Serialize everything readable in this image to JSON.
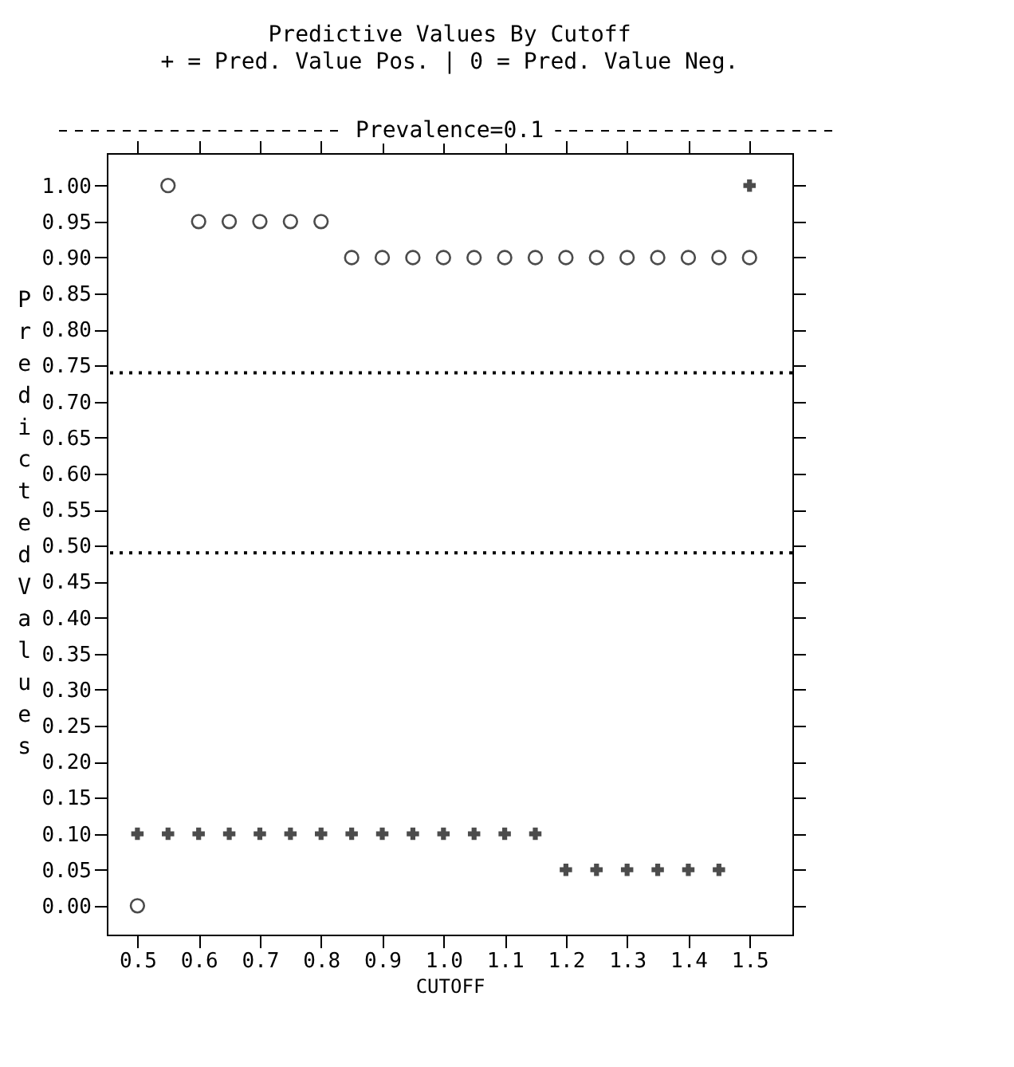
{
  "chart_data": {
    "type": "scatter",
    "title": "Predictive Values By Cutoff",
    "subtitle": "+ = Pred. Value Pos. | 0 = Pred. Value Neg.",
    "annotations": [
      "Prevalence=0.1"
    ],
    "xlabel": "CUTOFF",
    "ylabel": "Predicted Values",
    "xlim": [
      0.45,
      1.57
    ],
    "xticks": [
      {
        "value": 0.5,
        "label": "0.5"
      },
      {
        "value": 0.6,
        "label": "0.6"
      },
      {
        "value": 0.7,
        "label": "0.7"
      },
      {
        "value": 0.8,
        "label": "0.8"
      },
      {
        "value": 0.9,
        "label": "0.9"
      },
      {
        "value": 1.0,
        "label": "1.0"
      },
      {
        "value": 1.1,
        "label": "1.1"
      },
      {
        "value": 1.2,
        "label": "1.2"
      },
      {
        "value": 1.3,
        "label": "1.3"
      },
      {
        "value": 1.4,
        "label": "1.4"
      },
      {
        "value": 1.5,
        "label": "1.5"
      }
    ],
    "ylim": [
      -0.04,
      1.045
    ],
    "yticks": [
      {
        "value": 0.0,
        "label": "0.00"
      },
      {
        "value": 0.05,
        "label": "0.05"
      },
      {
        "value": 0.1,
        "label": "0.10"
      },
      {
        "value": 0.15,
        "label": "0.15"
      },
      {
        "value": 0.2,
        "label": "0.20"
      },
      {
        "value": 0.25,
        "label": "0.25"
      },
      {
        "value": 0.3,
        "label": "0.30"
      },
      {
        "value": 0.35,
        "label": "0.35"
      },
      {
        "value": 0.4,
        "label": "0.40"
      },
      {
        "value": 0.45,
        "label": "0.45"
      },
      {
        "value": 0.5,
        "label": "0.50"
      },
      {
        "value": 0.55,
        "label": "0.55"
      },
      {
        "value": 0.6,
        "label": "0.60"
      },
      {
        "value": 0.65,
        "label": "0.65"
      },
      {
        "value": 0.7,
        "label": "0.70"
      },
      {
        "value": 0.75,
        "label": "0.75"
      },
      {
        "value": 0.8,
        "label": "0.80"
      },
      {
        "value": 0.85,
        "label": "0.85"
      },
      {
        "value": 0.9,
        "label": "0.90"
      },
      {
        "value": 0.95,
        "label": "0.95"
      },
      {
        "value": 1.0,
        "label": "1.00"
      }
    ],
    "x": [
      0.5,
      0.55,
      0.6,
      0.65,
      0.7,
      0.75,
      0.8,
      0.85,
      0.9,
      0.95,
      1.0,
      1.05,
      1.1,
      1.15,
      1.2,
      1.25,
      1.3,
      1.35,
      1.4,
      1.45,
      1.5
    ],
    "series": [
      {
        "color": "#000000",
        "marker": "cross",
        "values": [
          0.1,
          0.1,
          0.1,
          0.1,
          0.1,
          0.1,
          0.1,
          0.1,
          0.1,
          0.1,
          0.1,
          0.1,
          0.1,
          0.1,
          0.05,
          0.05,
          0.05,
          0.05,
          0.05,
          0.05,
          1.0
        ]
      },
      {
        "color": "#000000",
        "marker": "circle",
        "values": [
          0.0,
          1.0,
          0.95,
          0.95,
          0.95,
          0.95,
          0.95,
          0.9,
          0.9,
          0.9,
          0.9,
          0.9,
          0.9,
          0.9,
          0.9,
          0.9,
          0.9,
          0.9,
          0.9,
          0.9,
          0.9
        ]
      }
    ],
    "ref_lines": [
      {
        "axis": "y",
        "value": 0.74,
        "line_style": "dotted"
      },
      {
        "axis": "y",
        "value": 0.49,
        "line_style": "dotted"
      }
    ],
    "grid": false
  }
}
